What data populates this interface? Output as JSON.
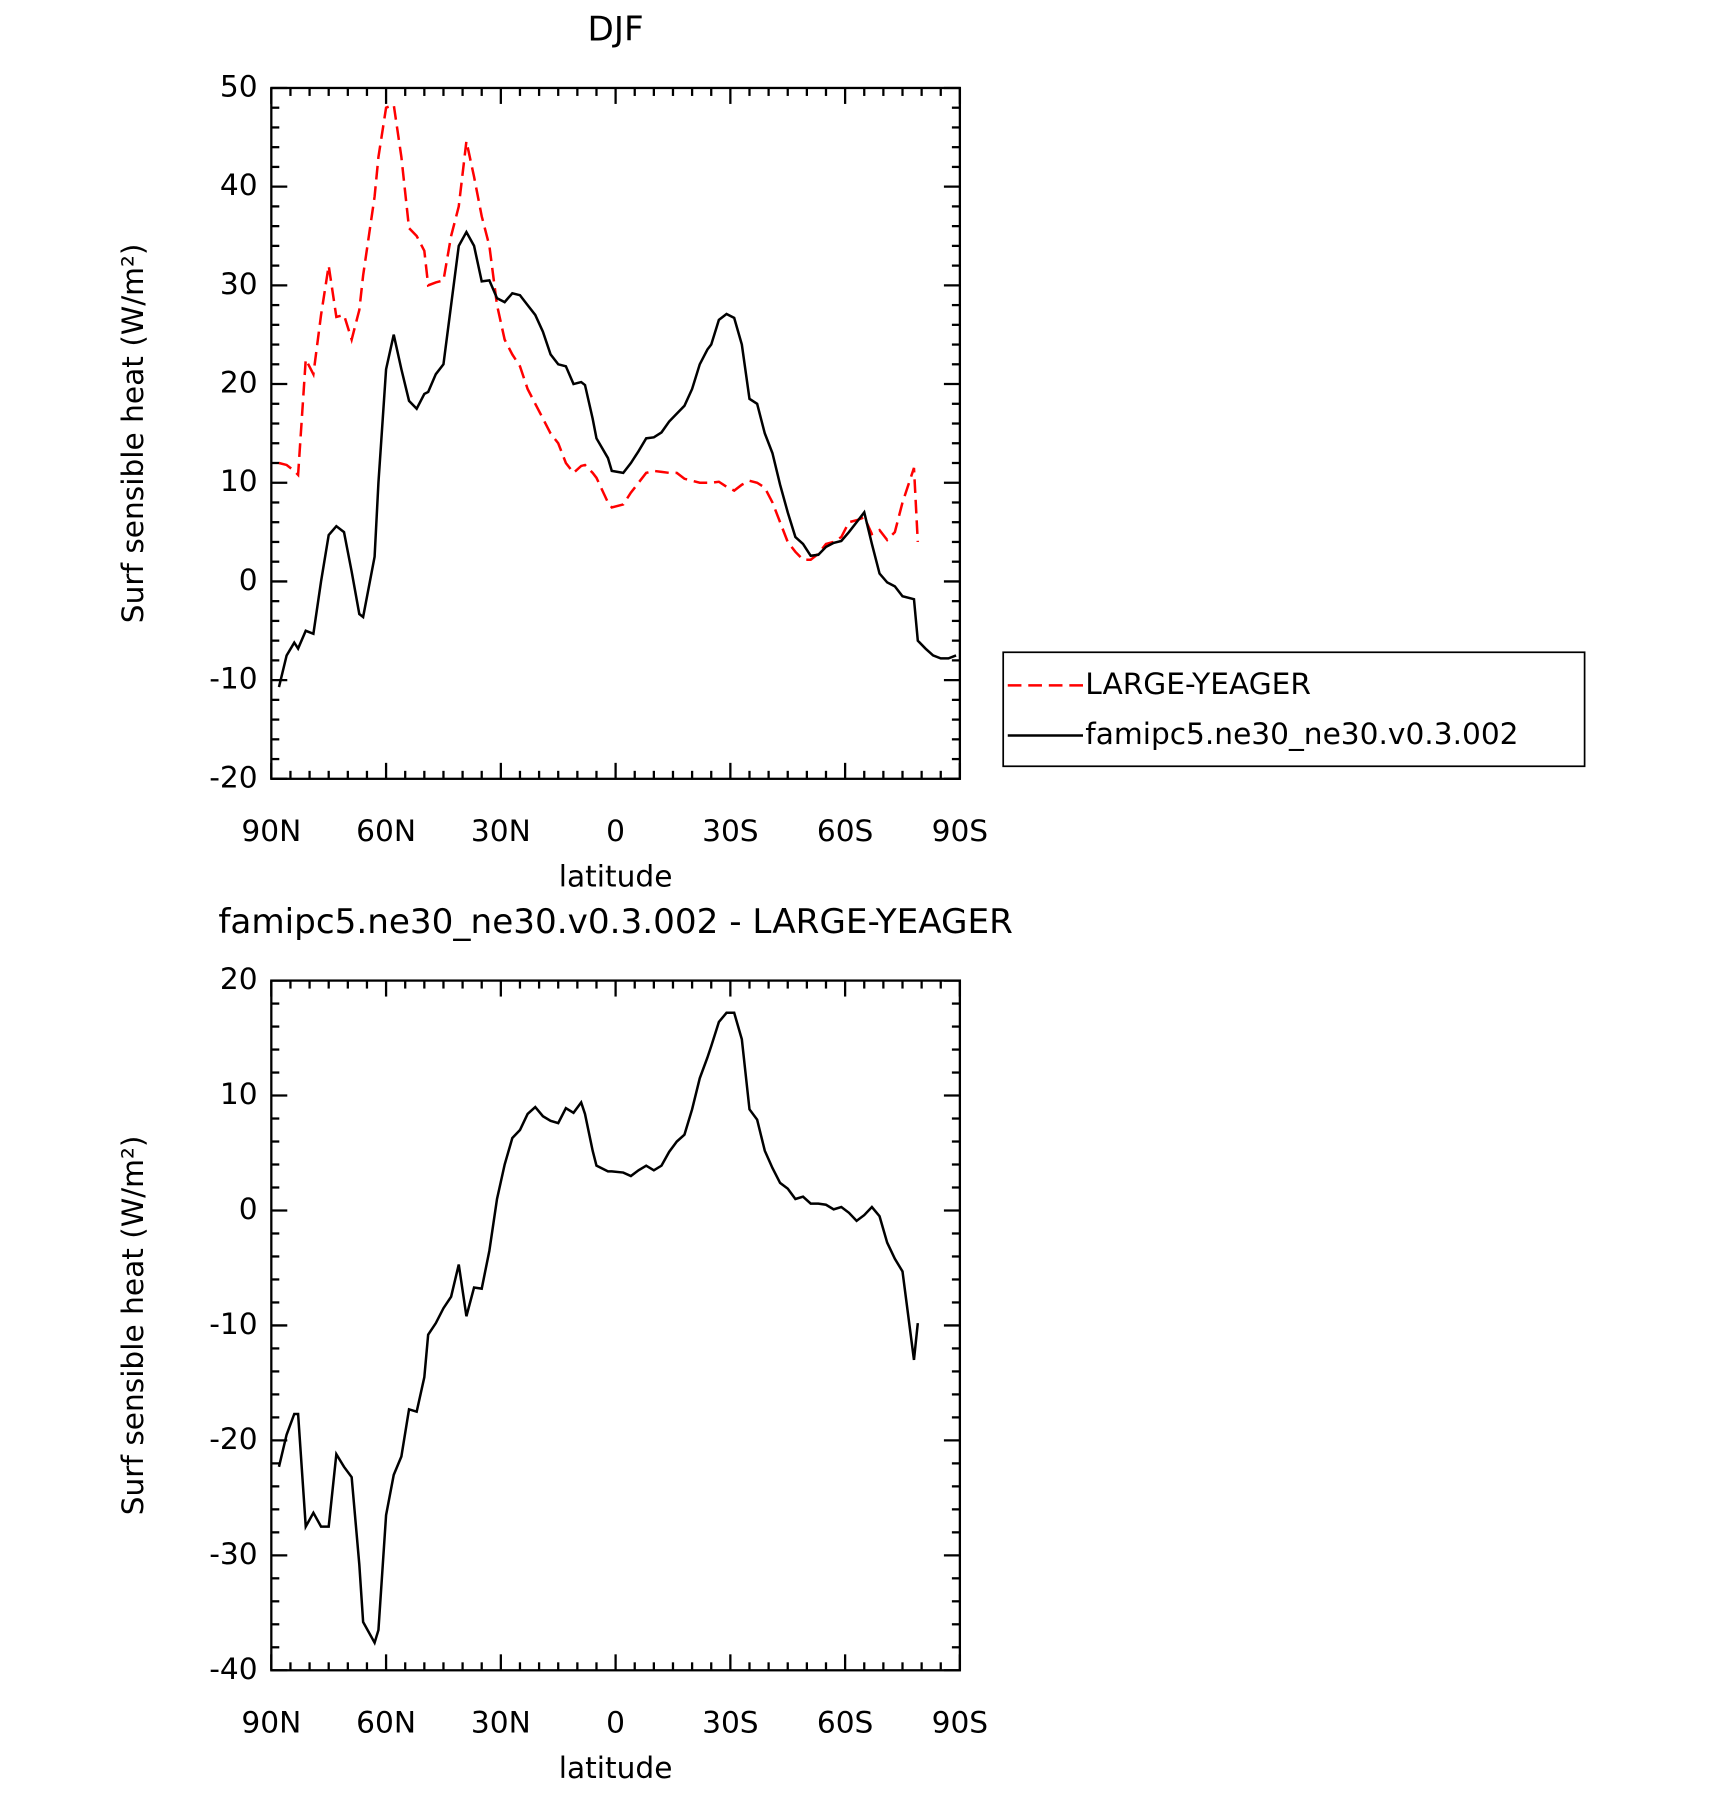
{
  "chart_data": [
    {
      "type": "line",
      "title": "DJF",
      "x_label": "latitude",
      "y_label": "Surf sensible heat (W/m²)",
      "x": [
        88,
        86,
        84,
        83,
        81,
        79,
        77,
        75,
        73,
        71,
        69,
        67,
        66,
        63,
        62,
        60,
        58,
        56,
        54,
        52,
        50,
        49,
        47,
        45,
        43,
        41,
        39,
        37,
        35,
        33,
        31,
        29,
        27,
        25,
        23,
        21,
        19,
        17,
        15,
        13,
        11,
        9,
        8,
        6,
        5,
        2,
        1,
        -2,
        -4,
        -6,
        -8,
        -10,
        -12,
        -14,
        -16,
        -18,
        -20,
        -22,
        -24,
        -25,
        -27,
        -29,
        -31,
        -33,
        -35,
        -37,
        -39,
        -41,
        -43,
        -45,
        -47,
        -49,
        -51,
        -53,
        -55,
        -57,
        -59,
        -61,
        -63,
        -65,
        -67,
        -69,
        -71,
        -73,
        -75,
        -78,
        -79,
        -81,
        -83,
        -85,
        -87,
        -89
      ],
      "series": [
        {
          "name": "LARGE-YEAGER",
          "color": "#ff0000",
          "line_style": "dashed",
          "values": [
            12,
            11.8,
            11.2,
            10.8,
            22.5,
            21,
            27,
            32,
            26.8,
            27,
            24.5,
            27.5,
            31,
            39,
            43,
            48,
            48.3,
            43,
            35.8,
            35,
            33.5,
            30,
            30.3,
            30.5,
            35,
            38,
            44.6,
            41,
            37,
            34,
            28,
            24.5,
            23,
            21.8,
            19.5,
            18,
            16.5,
            15,
            14,
            12,
            11,
            11.7,
            11.8,
            11,
            10.5,
            8,
            7.5,
            7.8,
            9,
            10,
            11,
            11.2,
            11.1,
            11,
            11,
            10.4,
            10.2,
            10,
            10,
            10,
            10.1,
            9.6,
            9.2,
            9.8,
            10.2,
            10,
            9.5,
            8,
            6,
            4,
            3,
            2.2,
            2.2,
            2.8,
            3.8,
            4,
            4.5,
            6,
            6.2,
            6.5,
            4.8,
            5.2,
            4.2,
            5,
            8,
            11.5,
            4,
            null,
            null,
            null,
            null,
            null
          ]
        },
        {
          "name": "famipc5.ne30_ne30.v0.3.002",
          "color": "#000000",
          "line_style": "solid",
          "values": [
            -10.7,
            -7.5,
            -6.2,
            -6.8,
            -5,
            -5.3,
            0,
            4.7,
            5.6,
            5,
            1,
            -3.3,
            -3.6,
            2.5,
            10,
            21.5,
            25,
            21.5,
            18.3,
            17.5,
            19,
            19.2,
            21,
            22,
            28,
            34,
            35.4,
            34,
            30.4,
            30.5,
            28.7,
            28.3,
            29.2,
            29,
            28,
            27,
            25.3,
            23,
            22,
            21.8,
            20,
            20.2,
            19.9,
            16.5,
            14.5,
            12.5,
            11.2,
            11,
            12,
            13.2,
            14.5,
            14.6,
            15.1,
            16.2,
            17,
            17.8,
            19.5,
            22,
            23.5,
            24,
            26.5,
            27.1,
            26.7,
            24,
            18.5,
            18,
            15,
            13,
            9.8,
            7,
            4.5,
            3.8,
            2.6,
            2.7,
            3.5,
            3.9,
            4.1,
            5,
            6,
            7,
            3.8,
            0.8,
            -0.1,
            -0.5,
            -1.5,
            -1.8,
            -6,
            -6.8,
            -7.5,
            -7.8,
            -7.8,
            -7.5
          ]
        }
      ],
      "xlim": [
        90,
        -90
      ],
      "xticks": [
        {
          "value": 90,
          "label": "90N"
        },
        {
          "value": 60,
          "label": "60N"
        },
        {
          "value": 30,
          "label": "30N"
        },
        0,
        {
          "value": -30,
          "label": "30S"
        },
        {
          "value": -60,
          "label": "60S"
        },
        {
          "value": -90,
          "label": "90S"
        }
      ],
      "ylim": [
        -20,
        50
      ],
      "yticks": [
        -20,
        -10,
        0,
        10,
        20,
        30,
        40,
        50
      ],
      "legend": "right"
    },
    {
      "type": "line",
      "title": "famipc5.ne30_ne30.v0.3.002 - LARGE-YEAGER",
      "x_label": "latitude",
      "y_label": "Surf sensible heat (W/m²)",
      "x": [
        88,
        86,
        84,
        83,
        81,
        79,
        77,
        75,
        73,
        71,
        69,
        67,
        66,
        63,
        62,
        60,
        58,
        56,
        54,
        52,
        50,
        49,
        47,
        45,
        43,
        41,
        39,
        37,
        35,
        33,
        31,
        29,
        27,
        25,
        23,
        21,
        19,
        17,
        15,
        13,
        11,
        9,
        8,
        6,
        5,
        2,
        1,
        -2,
        -4,
        -6,
        -8,
        -10,
        -12,
        -14,
        -16,
        -18,
        -20,
        -22,
        -24,
        -25,
        -27,
        -29,
        -31,
        -33,
        -35,
        -37,
        -39,
        -41,
        -43,
        -45,
        -47,
        -49,
        -51,
        -53,
        -55,
        -57,
        -59,
        -61,
        -63,
        -65,
        -67,
        -69,
        -71,
        -73,
        -75,
        -78,
        -79,
        -81,
        -83,
        -85,
        -87,
        -89
      ],
      "values": [
        -22.3,
        -19.5,
        -17.7,
        -17.7,
        -27.5,
        -26.3,
        -27.5,
        -27.5,
        -21.2,
        -22.3,
        -23.2,
        -30.8,
        -35.8,
        -37.6,
        -36.5,
        -26.5,
        -23,
        -21.4,
        -17.3,
        -17.5,
        -14.5,
        -10.8,
        -9.8,
        -8.5,
        -7.5,
        -4.7,
        -9.2,
        -6.7,
        -6.8,
        -3.5,
        1,
        4,
        6.3,
        7,
        8.4,
        9,
        8.2,
        7.8,
        7.6,
        8.9,
        8.5,
        9.4,
        8.4,
        5.2,
        3.9,
        3.4,
        3.4,
        3.3,
        3,
        3.5,
        3.9,
        3.5,
        3.9,
        5.1,
        6,
        6.6,
        8.8,
        11.5,
        13.3,
        14.3,
        16.4,
        17.2,
        17.2,
        14.9,
        8.8,
        7.9,
        5.2,
        3.7,
        2.4,
        1.9,
        1,
        1.2,
        0.6,
        0.6,
        0.5,
        0.1,
        0.3,
        -0.2,
        -0.9,
        -0.4,
        0.3,
        -0.5,
        -2.8,
        -4.2,
        -5.3,
        -13,
        -9.8,
        null,
        null,
        null,
        null,
        null
      ],
      "color": "#000000",
      "xlim": [
        90,
        -90
      ],
      "xticks": [
        {
          "value": 90,
          "label": "90N"
        },
        {
          "value": 60,
          "label": "60N"
        },
        {
          "value": 30,
          "label": "30N"
        },
        0,
        {
          "value": -30,
          "label": "30S"
        },
        {
          "value": -60,
          "label": "60S"
        },
        {
          "value": -90,
          "label": "90S"
        }
      ],
      "ylim": [
        -40,
        20
      ],
      "yticks": [
        -40,
        -30,
        -20,
        -10,
        0,
        10,
        20
      ]
    }
  ]
}
